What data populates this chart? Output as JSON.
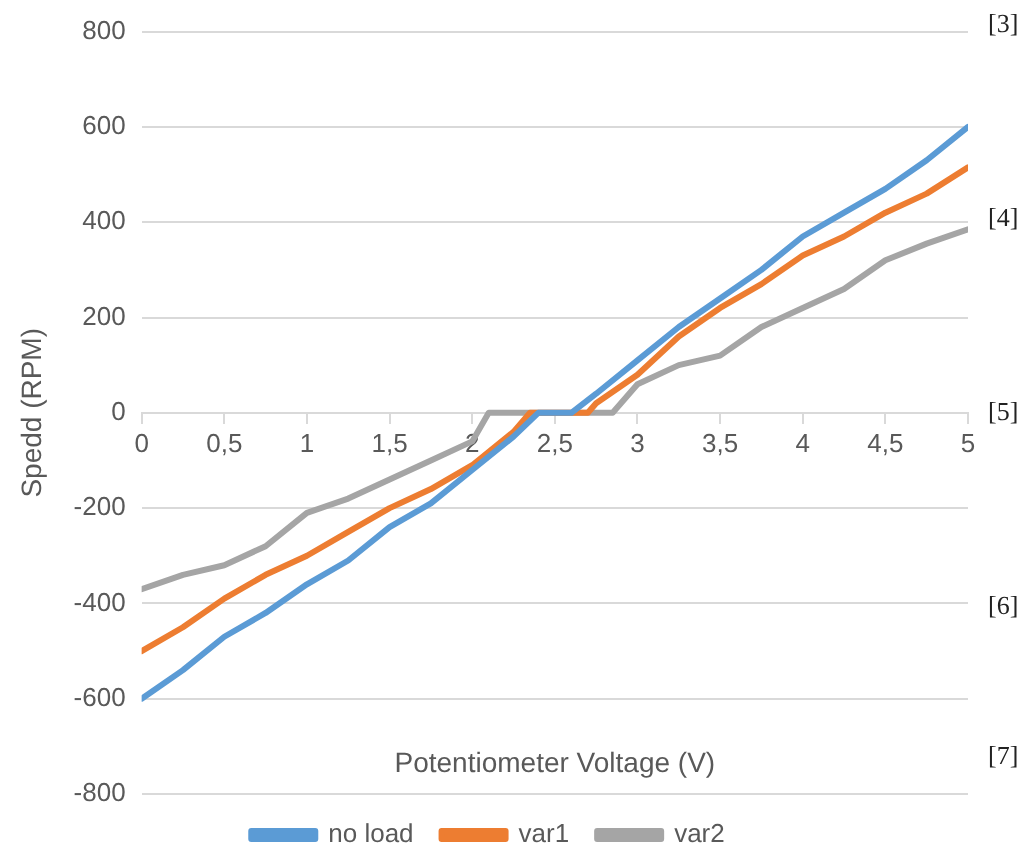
{
  "chart_data": {
    "type": "line",
    "xlabel": "Potentiometer Voltage (V)",
    "ylabel": "Spedd (RPM)",
    "xlim": [
      0,
      5
    ],
    "xticks": [
      0,
      {
        "value": 0.5,
        "label": "0,5"
      },
      1,
      {
        "value": 1.5,
        "label": "1,5"
      },
      2,
      {
        "value": 2.5,
        "label": "2,5"
      },
      3,
      {
        "value": 3.5,
        "label": "3,5"
      },
      4,
      {
        "value": 4.5,
        "label": "4,5"
      },
      5
    ],
    "ylim": [
      -800,
      800
    ],
    "yticks": [
      -800,
      -600,
      -400,
      -200,
      0,
      200,
      400,
      600,
      800
    ],
    "grid": "y",
    "legend": "bottom",
    "marker": "none",
    "line_style": "solid",
    "annotations": [
      "[3]",
      "[4]",
      "[5]",
      "[6]",
      "[7]"
    ],
    "series": [
      {
        "name": "no load",
        "color": "#5b9bd5",
        "x": [
          0,
          0.25,
          0.5,
          0.75,
          1,
          1.25,
          1.5,
          1.75,
          2,
          2.25,
          2.4,
          2.6,
          2.75,
          3,
          3.25,
          3.5,
          3.75,
          4,
          4.25,
          4.5,
          4.75,
          5
        ],
        "values": [
          -600,
          -540,
          -470,
          -420,
          -360,
          -310,
          -240,
          -190,
          -120,
          -50,
          0,
          0,
          40,
          110,
          180,
          240,
          300,
          370,
          420,
          470,
          530,
          600
        ]
      },
      {
        "name": "var1",
        "color": "#ed7d31",
        "x": [
          0,
          0.25,
          0.5,
          0.75,
          1,
          1.25,
          1.5,
          1.75,
          2,
          2.25,
          2.35,
          2.7,
          2.75,
          3,
          3.25,
          3.5,
          3.75,
          4,
          4.25,
          4.5,
          4.75,
          5
        ],
        "values": [
          -500,
          -450,
          -390,
          -340,
          -300,
          -250,
          -200,
          -160,
          -110,
          -40,
          0,
          0,
          20,
          80,
          160,
          220,
          270,
          330,
          370,
          420,
          460,
          515
        ]
      },
      {
        "name": "var2",
        "color": "#a5a5a5",
        "x": [
          0,
          0.25,
          0.5,
          0.75,
          1,
          1.25,
          1.5,
          1.75,
          2,
          2.1,
          2.85,
          3,
          3.25,
          3.5,
          3.75,
          4,
          4.25,
          4.5,
          4.75,
          5
        ],
        "values": [
          -370,
          -340,
          -320,
          -280,
          -210,
          -180,
          -140,
          -100,
          -60,
          0,
          0,
          60,
          100,
          120,
          180,
          220,
          260,
          320,
          355,
          385
        ]
      }
    ]
  }
}
